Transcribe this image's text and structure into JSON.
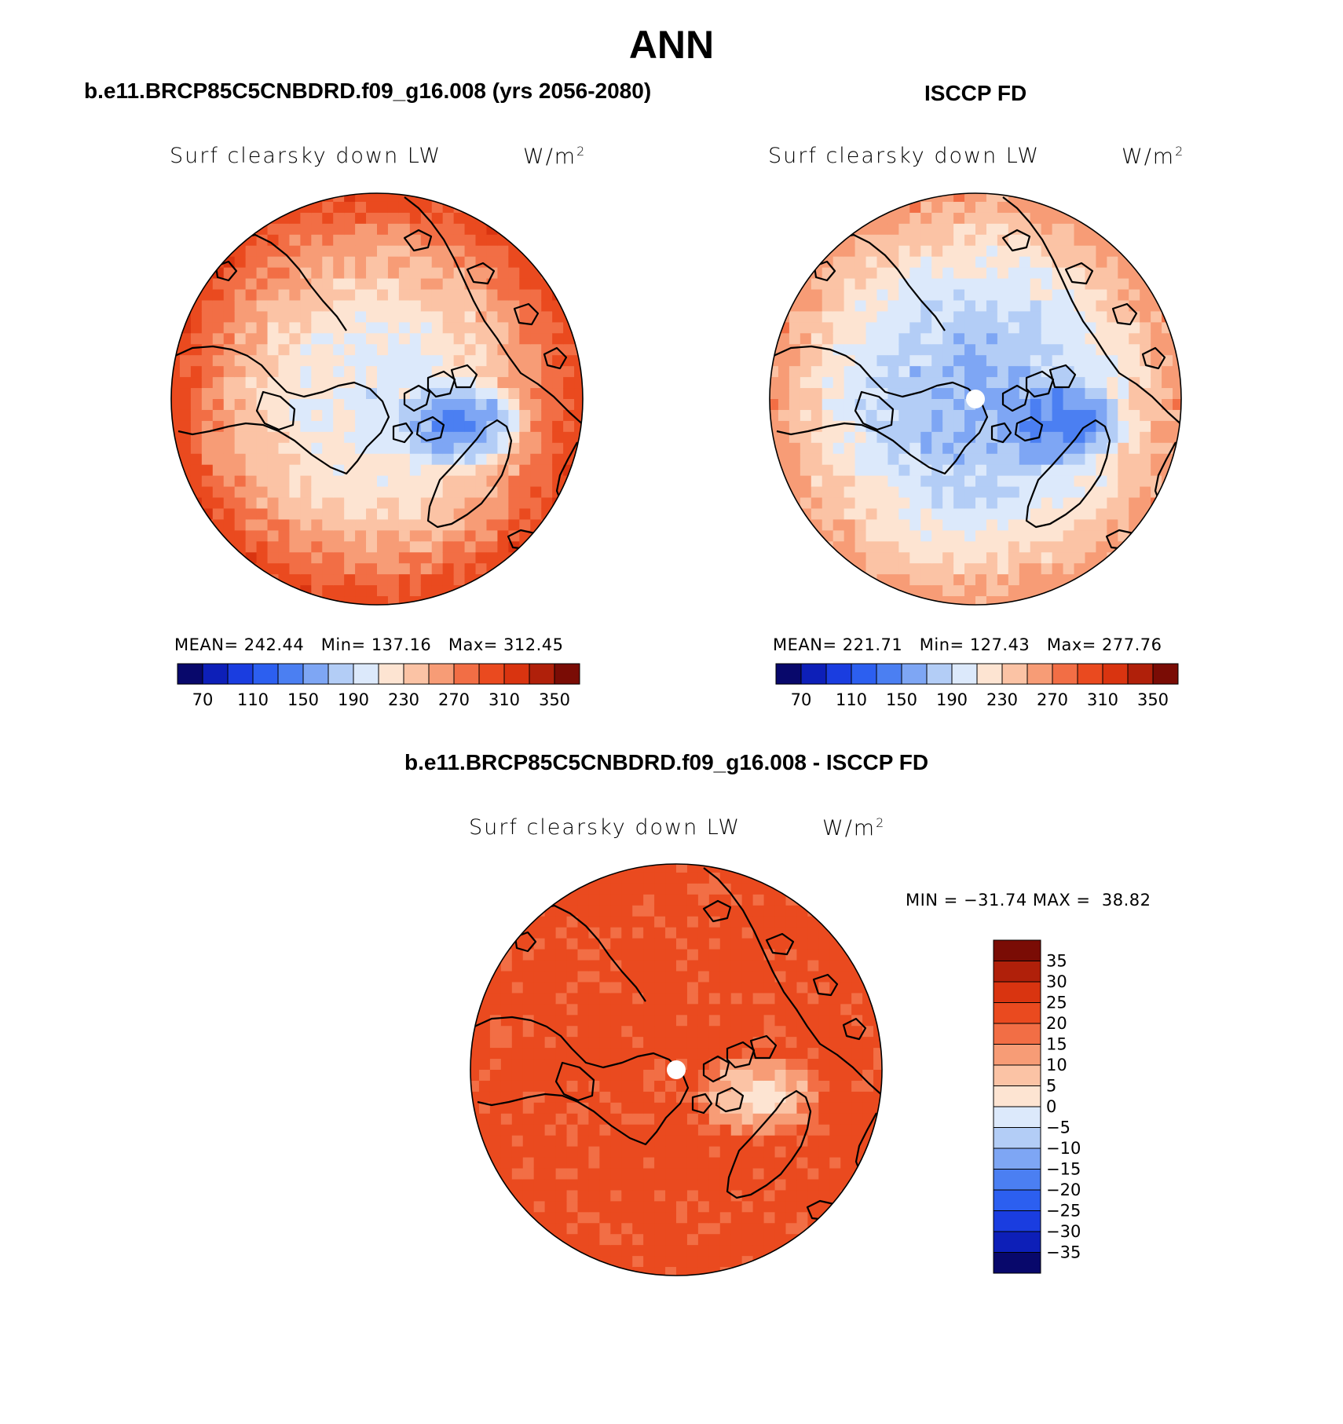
{
  "figure": {
    "title": "ANN",
    "diff_title": "b.e11.BRCP85C5CNBDRD.f09_g16.008 - ISCCP FD"
  },
  "panels": {
    "model": {
      "heading": "b.e11.BRCP85C5CNBDRD.f09_g16.008 (yrs 2056-2080)",
      "variable": "Surf clearsky down LW",
      "units_base": "W/m",
      "units_exp": "2",
      "mean_label": "MEAN=",
      "mean": "242.44",
      "min_label": "Min=",
      "min": "137.16",
      "max_label": "Max=",
      "max": "312.45"
    },
    "obs": {
      "heading": "ISCCP FD",
      "variable": "Surf clearsky down LW",
      "units_base": "W/m",
      "units_exp": "2",
      "mean_label": "MEAN=",
      "mean": "221.71",
      "min_label": "Min=",
      "min": "127.43",
      "max_label": "Max=",
      "max": "277.76"
    },
    "diff": {
      "variable": "Surf clearsky down LW",
      "units_base": "W/m",
      "units_exp": "2",
      "min_label": "MIN =",
      "min": "−31.74",
      "max_label": "MAX =",
      "max": "38.82"
    }
  },
  "colors": {
    "abs_scale": [
      "#08086b",
      "#0d1fb8",
      "#1a3de0",
      "#2c5ff0",
      "#4b7ff2",
      "#7ea6f4",
      "#b3cdf6",
      "#dce9fb",
      "#fde4d2",
      "#fbc3a5",
      "#f79c76",
      "#f26e45",
      "#ea4a1f",
      "#d93410",
      "#b0200a",
      "#7a0c05"
    ],
    "diff_scale": [
      "#08086b",
      "#0d1fb8",
      "#1a3de0",
      "#2c5ff0",
      "#4b7ff2",
      "#7ea6f4",
      "#b3cdf6",
      "#dce9fb",
      "#fde4d2",
      "#fbc3a5",
      "#f79c76",
      "#f26e45",
      "#ea4a1f",
      "#d93410",
      "#b0200a",
      "#7a0c05"
    ],
    "land_outline": "#000000"
  },
  "chart_data": [
    {
      "type": "heatmap",
      "projection": "north polar stereographic",
      "title": "b.e11.BRCP85C5CNBDRD.f09_g16.008 (yrs 2056-2080)",
      "variable": "Surf clearsky down LW",
      "units": "W/m2",
      "stats": {
        "mean": 242.44,
        "min": 137.16,
        "max": 312.45
      },
      "colorbar_ticks": [
        "70",
        "110",
        "150",
        "190",
        "230",
        "270",
        "310",
        "350"
      ],
      "colorbar_levels": [
        50,
        70,
        90,
        110,
        130,
        150,
        170,
        190,
        210,
        230,
        250,
        270,
        290,
        310,
        330,
        350,
        370
      ],
      "colorbar_orientation": "horizontal",
      "pattern": {
        "pole_value": 200,
        "greenland_value": 150,
        "edge_value": 300
      }
    },
    {
      "type": "heatmap",
      "projection": "north polar stereographic",
      "title": "ISCCP FD",
      "variable": "Surf clearsky down LW",
      "units": "W/m2",
      "stats": {
        "mean": 221.71,
        "min": 127.43,
        "max": 277.76
      },
      "colorbar_ticks": [
        "70",
        "110",
        "150",
        "190",
        "230",
        "270",
        "310",
        "350"
      ],
      "colorbar_levels": [
        50,
        70,
        90,
        110,
        130,
        150,
        170,
        190,
        210,
        230,
        250,
        270,
        290,
        310,
        330,
        350,
        370
      ],
      "colorbar_orientation": "horizontal",
      "pattern": {
        "pole_value": 170,
        "greenland_value": 140,
        "edge_value": 260
      },
      "missing_pole": true
    },
    {
      "type": "heatmap",
      "projection": "north polar stereographic",
      "title": "b.e11.BRCP85C5CNBDRD.f09_g16.008 - ISCCP FD",
      "variable": "Surf clearsky down LW",
      "units": "W/m2",
      "stats": {
        "min": -31.74,
        "max": 38.82
      },
      "colorbar_ticks": [
        "35",
        "30",
        "25",
        "20",
        "15",
        "10",
        "5",
        "0",
        "−5",
        "−10",
        "−15",
        "−20",
        "−25",
        "−30",
        "−35"
      ],
      "colorbar_levels": [
        -40,
        -35,
        -30,
        -25,
        -20,
        -15,
        -10,
        -5,
        0,
        5,
        10,
        15,
        20,
        25,
        30,
        35,
        40
      ],
      "colorbar_orientation": "vertical",
      "pattern": {
        "pole_value": 22,
        "greenland_value": 5,
        "edge_value": 22
      },
      "missing_pole": true
    }
  ]
}
